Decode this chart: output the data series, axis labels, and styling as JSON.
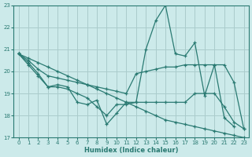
{
  "xlabel": "Humidex (Indice chaleur)",
  "bg_color": "#cceaea",
  "grid_color": "#aacccc",
  "line_color": "#2a7a72",
  "xlim": [
    -0.5,
    23.5
  ],
  "ylim": [
    17,
    23
  ],
  "xticks": [
    0,
    1,
    2,
    3,
    4,
    5,
    6,
    7,
    8,
    9,
    10,
    11,
    12,
    13,
    14,
    15,
    16,
    17,
    18,
    19,
    20,
    21,
    22,
    23
  ],
  "yticks": [
    17,
    18,
    19,
    20,
    21,
    22,
    23
  ],
  "lines": [
    {
      "x": [
        0,
        1,
        2,
        3,
        4,
        5,
        6,
        7,
        8,
        9,
        10,
        11,
        12,
        13,
        14,
        15,
        16,
        17,
        18,
        19,
        20,
        21,
        22
      ],
      "y": [
        20.8,
        20.4,
        19.9,
        19.3,
        19.4,
        19.3,
        18.6,
        18.5,
        18.7,
        17.6,
        18.1,
        18.6,
        18.6,
        21.0,
        22.3,
        23.0,
        20.8,
        20.7,
        21.3,
        18.9,
        20.3,
        17.9,
        17.5
      ]
    },
    {
      "x": [
        0,
        1,
        2,
        3,
        4,
        5,
        6,
        7,
        8,
        9,
        10,
        11,
        12,
        13,
        14,
        15,
        16,
        17,
        18,
        19,
        20,
        21,
        22,
        23
      ],
      "y": [
        20.8,
        20.5,
        20.1,
        19.8,
        19.7,
        19.6,
        19.5,
        19.4,
        19.3,
        19.2,
        19.1,
        19.0,
        19.9,
        20.0,
        20.1,
        20.2,
        20.2,
        20.3,
        20.3,
        20.3,
        20.3,
        20.3,
        19.5,
        17.4
      ]
    },
    {
      "x": [
        0,
        1,
        2,
        3,
        4,
        5,
        6,
        7,
        8,
        9,
        10,
        11,
        12,
        13,
        14,
        15,
        16,
        17,
        18,
        19,
        20,
        21,
        22,
        23
      ],
      "y": [
        20.8,
        20.6,
        20.4,
        20.2,
        20.0,
        19.8,
        19.6,
        19.4,
        19.2,
        19.0,
        18.8,
        18.6,
        18.4,
        18.2,
        18.0,
        17.8,
        17.7,
        17.6,
        17.5,
        17.4,
        17.3,
        17.2,
        17.1,
        17.0
      ]
    },
    {
      "x": [
        0,
        1,
        2,
        3,
        4,
        5,
        6,
        7,
        8,
        9,
        10,
        11,
        12,
        13,
        14,
        15,
        16,
        17,
        18,
        19,
        20,
        21,
        22,
        23
      ],
      "y": [
        20.8,
        20.3,
        19.8,
        19.3,
        19.3,
        19.2,
        19.0,
        18.8,
        18.4,
        18.0,
        18.5,
        18.5,
        18.6,
        18.6,
        18.6,
        18.6,
        18.6,
        18.6,
        19.0,
        19.0,
        19.0,
        18.4,
        17.7,
        17.4
      ]
    }
  ]
}
